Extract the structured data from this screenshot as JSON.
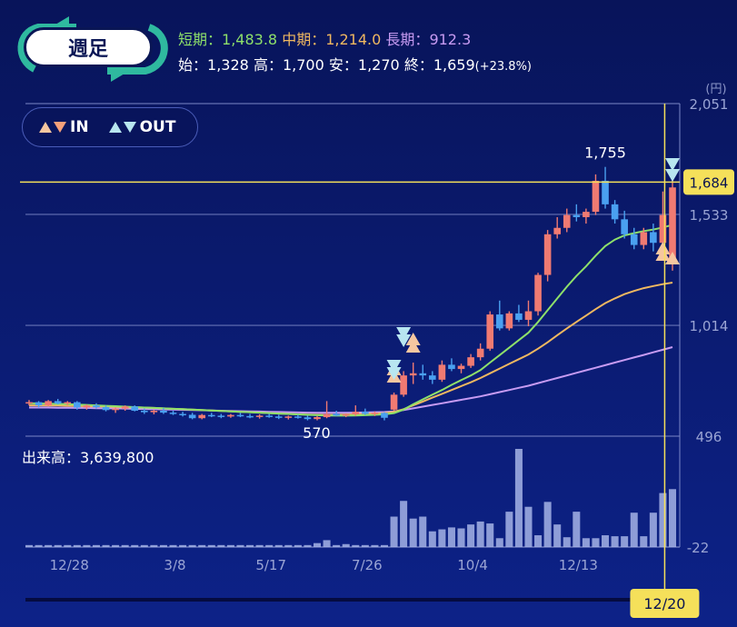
{
  "period_button": {
    "label": "週足"
  },
  "moving_averages": {
    "short": {
      "label": "短期",
      "value": "1,483.8",
      "color": "#8ee06a"
    },
    "mid": {
      "label": "中期",
      "value": "1,214.0",
      "color": "#f0b860"
    },
    "long": {
      "label": "長期",
      "value": "912.3",
      "color": "#c79bf2"
    }
  },
  "ohlc": {
    "open_label": "始",
    "open": "1,328",
    "high_label": "高",
    "high": "1,700",
    "low_label": "安",
    "low": "1,270",
    "close_label": "終",
    "close": "1,659",
    "change": "(+23.8%)"
  },
  "legend": {
    "in_label": "IN",
    "out_label": "OUT"
  },
  "volume": {
    "label": "出来高",
    "value": "3,639,800"
  },
  "colors": {
    "up": "#f07a72",
    "down": "#4aa0f0",
    "crosshair": "#f5e05a",
    "volume": "#a6b4e6"
  },
  "chart_data": [
    {
      "type": "candlestick",
      "unit_label": "(円)",
      "y_ticks": [
        2051,
        1533,
        1014,
        496
      ],
      "ylim": [
        496,
        2051
      ],
      "x_tick_labels": [
        "12/28",
        "3/8",
        "5/17",
        "7/26",
        "10/4",
        "12/13"
      ],
      "high_annotation": "1,755",
      "low_annotation": "570",
      "crosshair_price": "1,684",
      "crosshair_date": "12/20",
      "candles": [
        [
          650,
          665,
          640,
          655
        ],
        [
          655,
          660,
          630,
          640
        ],
        [
          640,
          665,
          635,
          660
        ],
        [
          660,
          670,
          645,
          648
        ],
        [
          648,
          660,
          640,
          655
        ],
        [
          655,
          660,
          620,
          630
        ],
        [
          630,
          645,
          620,
          640
        ],
        [
          640,
          650,
          625,
          632
        ],
        [
          632,
          640,
          612,
          618
        ],
        [
          618,
          630,
          605,
          625
        ],
        [
          625,
          640,
          615,
          635
        ],
        [
          635,
          640,
          612,
          615
        ],
        [
          615,
          625,
          600,
          608
        ],
        [
          608,
          620,
          598,
          615
        ],
        [
          615,
          628,
          600,
          606
        ],
        [
          606,
          615,
          595,
          600
        ],
        [
          600,
          610,
          588,
          596
        ],
        [
          596,
          605,
          575,
          580
        ],
        [
          580,
          600,
          575,
          595
        ],
        [
          595,
          605,
          585,
          592
        ],
        [
          592,
          600,
          580,
          588
        ],
        [
          588,
          600,
          582,
          595
        ],
        [
          595,
          605,
          585,
          590
        ],
        [
          590,
          600,
          580,
          586
        ],
        [
          586,
          598,
          578,
          592
        ],
        [
          592,
          600,
          582,
          588
        ],
        [
          588,
          596,
          576,
          582
        ],
        [
          582,
          592,
          574,
          588
        ],
        [
          588,
          596,
          578,
          584
        ],
        [
          584,
          592,
          570,
          576
        ],
        [
          576,
          590,
          570,
          585
        ],
        [
          585,
          660,
          580,
          600
        ],
        [
          600,
          615,
          590,
          592
        ],
        [
          592,
          602,
          585,
          598
        ],
        [
          598,
          640,
          590,
          610
        ],
        [
          610,
          625,
          595,
          600
        ],
        [
          600,
          612,
          590,
          605
        ],
        [
          605,
          608,
          570,
          582
        ],
        [
          620,
          700,
          615,
          690
        ],
        [
          690,
          800,
          680,
          780
        ],
        [
          780,
          840,
          740,
          790
        ],
        [
          790,
          830,
          760,
          780
        ],
        [
          780,
          800,
          740,
          760
        ],
        [
          760,
          850,
          750,
          830
        ],
        [
          830,
          860,
          800,
          810
        ],
        [
          810,
          835,
          790,
          825
        ],
        [
          825,
          880,
          815,
          865
        ],
        [
          865,
          930,
          850,
          905
        ],
        [
          905,
          1080,
          895,
          1065
        ],
        [
          1065,
          1130,
          990,
          1000
        ],
        [
          1000,
          1080,
          990,
          1070
        ],
        [
          1070,
          1110,
          1030,
          1040
        ],
        [
          1040,
          1130,
          1010,
          1080
        ],
        [
          1080,
          1260,
          1060,
          1250
        ],
        [
          1250,
          1460,
          1220,
          1440
        ],
        [
          1440,
          1520,
          1420,
          1470
        ],
        [
          1470,
          1560,
          1450,
          1530
        ],
        [
          1530,
          1580,
          1500,
          1520
        ],
        [
          1520,
          1560,
          1490,
          1545
        ],
        [
          1545,
          1720,
          1530,
          1690
        ],
        [
          1690,
          1755,
          1560,
          1580
        ],
        [
          1580,
          1600,
          1490,
          1510
        ],
        [
          1510,
          1550,
          1420,
          1440
        ],
        [
          1440,
          1470,
          1370,
          1390
        ],
        [
          1390,
          1470,
          1370,
          1450
        ],
        [
          1450,
          1490,
          1360,
          1400
        ],
        [
          1400,
          1640,
          1380,
          1530
        ],
        [
          1328,
          1700,
          1270,
          1659
        ]
      ],
      "ma_short": [
        650,
        649,
        648,
        647,
        646,
        644,
        642,
        640,
        638,
        636,
        634,
        632,
        630,
        628,
        626,
        624,
        622,
        620,
        618,
        616,
        614,
        612,
        610,
        608,
        606,
        604,
        602,
        600,
        598,
        596,
        594,
        593,
        592,
        592,
        593,
        594,
        596,
        598,
        604,
        620,
        645,
        668,
        690,
        712,
        736,
        758,
        780,
        805,
        840,
        875,
        910,
        945,
        980,
        1030,
        1085,
        1140,
        1195,
        1245,
        1290,
        1340,
        1385,
        1415,
        1435,
        1445,
        1455,
        1462,
        1472,
        1483.8
      ],
      "ma_mid": [
        640,
        640,
        639,
        639,
        638,
        637,
        636,
        635,
        634,
        633,
        632,
        631,
        630,
        628,
        626,
        624,
        622,
        620,
        618,
        616,
        614,
        612,
        610,
        608,
        606,
        604,
        602,
        600,
        598,
        597,
        596,
        596,
        596,
        597,
        598,
        600,
        602,
        604,
        610,
        622,
        640,
        658,
        676,
        694,
        712,
        730,
        748,
        768,
        790,
        812,
        834,
        856,
        878,
        905,
        935,
        968,
        1000,
        1030,
        1060,
        1090,
        1118,
        1140,
        1160,
        1175,
        1188,
        1198,
        1207,
        1214.0
      ],
      "ma_long": [
        630,
        630,
        630,
        629,
        629,
        628,
        628,
        627,
        626,
        626,
        625,
        624,
        623,
        622,
        621,
        620,
        619,
        618,
        617,
        616,
        615,
        614,
        613,
        612,
        611,
        610,
        609,
        608,
        607,
        606,
        605,
        605,
        605,
        605,
        606,
        607,
        608,
        609,
        612,
        618,
        626,
        634,
        642,
        650,
        658,
        666,
        674,
        682,
        692,
        702,
        712,
        722,
        732,
        744,
        756,
        768,
        780,
        792,
        804,
        816,
        828,
        840,
        852,
        864,
        876,
        888,
        900,
        912.3
      ],
      "volume": [
        0.02,
        0.02,
        0.02,
        0.02,
        0.02,
        0.02,
        0.02,
        0.02,
        0.02,
        0.02,
        0.02,
        0.02,
        0.02,
        0.02,
        0.02,
        0.02,
        0.02,
        0.02,
        0.02,
        0.02,
        0.02,
        0.02,
        0.02,
        0.02,
        0.02,
        0.02,
        0.02,
        0.02,
        0.02,
        0.02,
        0.04,
        0.07,
        0.02,
        0.03,
        0.02,
        0.02,
        0.02,
        0.02,
        0.31,
        0.47,
        0.29,
        0.31,
        0.16,
        0.18,
        0.2,
        0.19,
        0.23,
        0.26,
        0.24,
        0.09,
        0.36,
        1.0,
        0.41,
        0.12,
        0.46,
        0.23,
        0.1,
        0.36,
        0.09,
        0.09,
        0.12,
        0.11,
        0.11,
        0.35,
        0.11,
        0.35,
        0.55,
        0.59
      ]
    }
  ]
}
